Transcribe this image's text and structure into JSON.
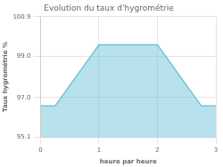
{
  "chart_data": {
    "type": "area",
    "title": "Evolution du taux d'hygrométrie",
    "x_label": "heure par heure",
    "y_label": "Taux hygrométrie %",
    "x": [
      0,
      0.25,
      1,
      2,
      2.75,
      3
    ],
    "values": [
      96.6,
      96.6,
      99.55,
      99.55,
      96.6,
      96.6
    ],
    "color": "#60bcd8",
    "xlim": [
      0,
      3
    ],
    "xticks": [
      0,
      1,
      2,
      3
    ],
    "ylim": [
      95.1,
      100.9
    ],
    "yticks": [
      95.1,
      {
        "value": 97.0,
        "label": "97.0"
      },
      {
        "value": 99.0,
        "label": "99.0"
      },
      100.9
    ],
    "grid": true
  }
}
